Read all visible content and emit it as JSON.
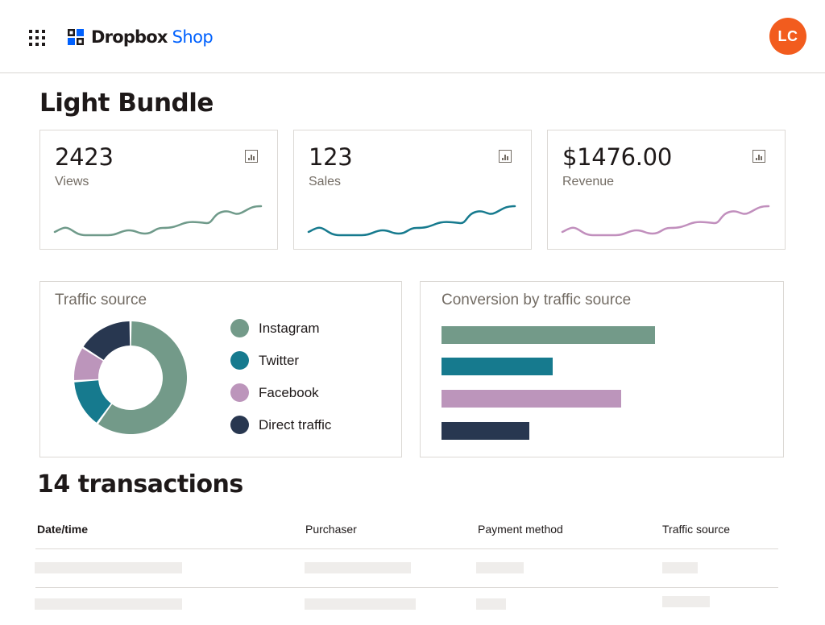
{
  "header": {
    "brand_name": "Dropbox",
    "brand_sub": "Shop",
    "avatar_initials": "LC"
  },
  "page_title": "Light Bundle",
  "metrics": [
    {
      "value": "2423",
      "label": "Views",
      "color": "#6f9a8a"
    },
    {
      "value": "123",
      "label": "Sales",
      "color": "#167a8e"
    },
    {
      "value": "$1476.00",
      "label": "Revenue",
      "color": "#c18fbd"
    }
  ],
  "traffic": {
    "title": "Traffic source",
    "sources": [
      {
        "label": "Instagram",
        "value": 60,
        "color": "#739a89"
      },
      {
        "label": "Twitter",
        "value": 14,
        "color": "#167a8e"
      },
      {
        "label": "Facebook",
        "value": 10,
        "color": "#bc95bb"
      },
      {
        "label": "Direct traffic",
        "value": 16,
        "color": "#283750"
      }
    ]
  },
  "conversion": {
    "title": "Conversion by traffic source",
    "bars": [
      {
        "label": "Instagram",
        "value": 100,
        "color": "#739a89"
      },
      {
        "label": "Twitter",
        "value": 52,
        "color": "#167a8e"
      },
      {
        "label": "Facebook",
        "value": 84,
        "color": "#bc95bb"
      },
      {
        "label": "Direct traffic",
        "value": 41,
        "color": "#283750"
      }
    ]
  },
  "transactions": {
    "title": "14 transactions",
    "columns": [
      "Date/time",
      "Purchaser",
      "Payment method",
      "Traffic source"
    ]
  }
}
